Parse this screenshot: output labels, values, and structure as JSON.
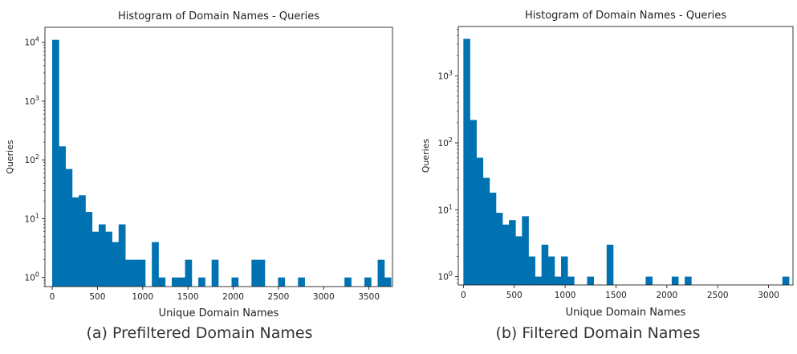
{
  "captions": [
    "(a) Prefiltered Domain Names",
    "(b) Filtered Domain Names"
  ],
  "chart_data": [
    {
      "type": "bar",
      "title": "Histogram of Domain Names - Queries",
      "xlabel": "Unique Domain Names",
      "ylabel": "Queries",
      "yscale": "log",
      "xlim": [
        -80,
        3760
      ],
      "ylim": [
        0.7,
        18000
      ],
      "xticks": [
        0,
        500,
        1000,
        1500,
        2000,
        2500,
        3000,
        3500
      ],
      "yticks": [
        {
          "value": 1,
          "exp": "0"
        },
        {
          "value": 10,
          "exp": "1"
        },
        {
          "value": 100,
          "exp": "2"
        },
        {
          "value": 1000,
          "exp": "3"
        },
        {
          "value": 10000,
          "exp": "4"
        }
      ],
      "bin_width": 73.4,
      "bin_start": 0,
      "bar_color": "#0072b2",
      "values": [
        11000,
        170,
        70,
        23,
        25,
        13,
        6,
        8,
        6,
        4,
        8,
        2,
        2,
        2,
        0,
        4,
        1,
        0,
        1,
        1,
        2,
        0,
        1,
        0,
        2,
        0,
        0,
        1,
        0,
        0,
        2,
        2,
        0,
        0,
        1,
        0,
        0,
        1,
        0,
        0,
        0,
        0,
        0,
        0,
        1,
        0,
        0,
        1,
        0,
        2,
        1
      ]
    },
    {
      "type": "bar",
      "title": "Histogram of Domain Names - Queries",
      "xlabel": "Unique Domain Names",
      "ylabel": "Queries",
      "yscale": "log",
      "xlim": [
        -50,
        3240
      ],
      "ylim": [
        0.75,
        5500
      ],
      "xticks": [
        0,
        500,
        1000,
        1500,
        2000,
        2500,
        3000
      ],
      "yticks": [
        {
          "value": 1,
          "exp": "0"
        },
        {
          "value": 10,
          "exp": "1"
        },
        {
          "value": 100,
          "exp": "2"
        },
        {
          "value": 1000,
          "exp": "3"
        }
      ],
      "bin_width": 64,
      "bin_start": 0,
      "bar_color": "#0072b2",
      "values": [
        3600,
        220,
        60,
        30,
        18,
        9,
        6,
        7,
        4,
        8,
        2,
        1,
        3,
        2,
        1,
        2,
        1,
        0,
        0,
        1,
        0,
        0,
        3,
        0,
        0,
        0,
        0,
        0,
        1,
        0,
        0,
        0,
        1,
        0,
        1,
        0,
        0,
        0,
        0,
        0,
        0,
        0,
        0,
        0,
        0,
        0,
        0,
        0,
        0,
        1
      ]
    }
  ]
}
